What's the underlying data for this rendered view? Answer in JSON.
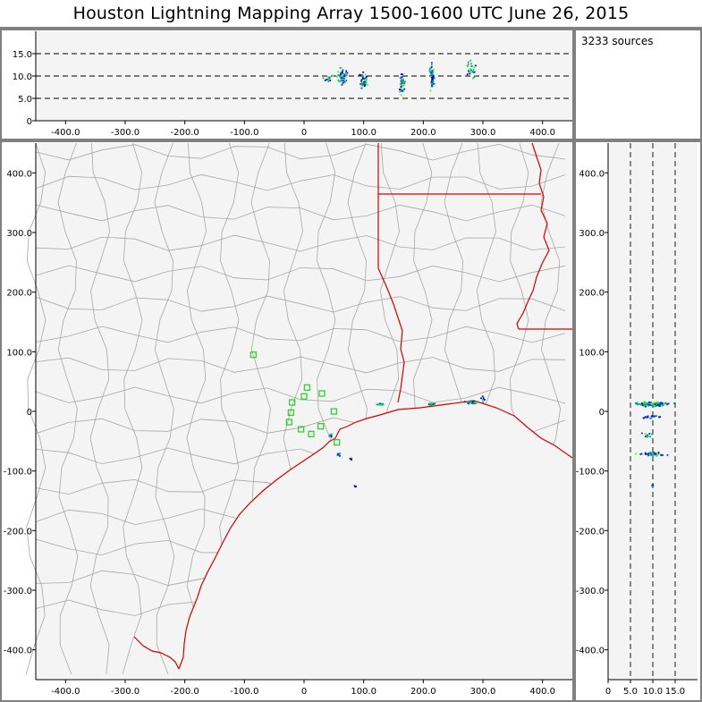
{
  "title": "Houston Lightning Mapping Array   1500-1600 UTC  June 26, 2015",
  "source_count": "3233 sources",
  "colors": {
    "panel_bg": "#f4f4f4",
    "frame": "#808080",
    "county_line": "#a6a6a6",
    "state_line": "#d00000",
    "station": "#22cc22",
    "sources": [
      "#1a00b8",
      "#0040ff",
      "#00a0a0",
      "#00c060",
      "#40ff20"
    ]
  },
  "chart_data": [
    {
      "type": "scatter",
      "name": "altitude-vs-east-west",
      "xlim": [
        -450,
        450
      ],
      "ylim": [
        0,
        20
      ],
      "xticks": [
        -400,
        -300,
        -200,
        -100,
        0,
        100,
        200,
        300,
        400
      ],
      "xtick_labels": [
        "-400.0",
        "-300.0",
        "-200.0",
        "-100.0",
        "0",
        "100.0",
        "200.0",
        "300.0",
        "400.0"
      ],
      "yticks": [
        0,
        5,
        10,
        15
      ],
      "ytick_labels": [
        "0",
        "5.0",
        "10.0",
        "15.0"
      ],
      "dashed_lines": [
        5,
        10,
        15
      ],
      "clusters": [
        {
          "x": 65,
          "y": 10,
          "dx": 12,
          "dy": 2.5,
          "n": 60
        },
        {
          "x": 100,
          "y": 9,
          "dx": 8,
          "dy": 2.5,
          "n": 45
        },
        {
          "x": 165,
          "y": 8,
          "dx": 6,
          "dy": 3.5,
          "n": 40
        },
        {
          "x": 215,
          "y": 10,
          "dx": 6,
          "dy": 4,
          "n": 55
        },
        {
          "x": 280,
          "y": 11.5,
          "dx": 12,
          "dy": 2.5,
          "n": 25
        },
        {
          "x": 40,
          "y": 9.5,
          "dx": 20,
          "dy": 1,
          "n": 12
        }
      ]
    },
    {
      "type": "scatter",
      "name": "plan-view-map",
      "xlim": [
        -450,
        450
      ],
      "ylim": [
        -450,
        450
      ],
      "xticks": [
        -400,
        -300,
        -200,
        -100,
        0,
        100,
        200,
        300,
        400
      ],
      "xtick_labels": [
        "-400.0",
        "-300.0",
        "-200.0",
        "-100.0",
        "0",
        "100.0",
        "200.0",
        "300.0",
        "400.0"
      ],
      "yticks": [
        400,
        300,
        200,
        100,
        0,
        -100,
        -200,
        -300,
        -400
      ],
      "ytick_labels": [
        "400.0",
        "300.0",
        "200.0",
        "100.0",
        "0",
        "-100.0",
        "-200.0",
        "-300.0",
        "-400.0"
      ],
      "stations": [
        [
          -85,
          95
        ],
        [
          -20,
          15
        ],
        [
          0,
          25
        ],
        [
          5,
          40
        ],
        [
          30,
          30
        ],
        [
          -22,
          -2
        ],
        [
          -25,
          -18
        ],
        [
          -5,
          -30
        ],
        [
          12,
          -38
        ],
        [
          28,
          -25
        ],
        [
          50,
          0
        ],
        [
          55,
          -52
        ]
      ],
      "clusters": [
        {
          "x": 58,
          "y": -72,
          "dx": 5,
          "dy": 3,
          "n": 15
        },
        {
          "x": 128,
          "y": 12,
          "dx": 8,
          "dy": 3,
          "n": 20
        },
        {
          "x": 215,
          "y": 12,
          "dx": 10,
          "dy": 3,
          "n": 22
        },
        {
          "x": 280,
          "y": 15,
          "dx": 15,
          "dy": 4,
          "n": 25
        },
        {
          "x": 300,
          "y": 20,
          "dx": 5,
          "dy": 8,
          "n": 8
        },
        {
          "x": 78,
          "y": -80,
          "dx": 4,
          "dy": 4,
          "n": 5
        },
        {
          "x": 85,
          "y": -125,
          "dx": 3,
          "dy": 3,
          "n": 4
        },
        {
          "x": 45,
          "y": -40,
          "dx": 5,
          "dy": 5,
          "n": 6
        }
      ]
    },
    {
      "type": "scatter",
      "name": "north-south-vs-altitude",
      "xlim": [
        0,
        20
      ],
      "ylim": [
        -450,
        450
      ],
      "xticks": [
        0,
        5,
        10,
        15
      ],
      "xtick_labels": [
        "0",
        "5.0",
        "10.0",
        "15.0"
      ],
      "yticks": [
        400,
        300,
        200,
        100,
        0,
        -100,
        -200,
        -300,
        -400
      ],
      "ytick_labels": [
        "400.0",
        "300.0",
        "200.0",
        "100.0",
        "0",
        "-100.0",
        "-200.0",
        "-300.0",
        "-400.0"
      ],
      "dashed_lines": [
        5,
        10,
        15
      ],
      "clusters": [
        {
          "x": 10,
          "y": 12,
          "dx": 5,
          "dy": 5,
          "n": 120
        },
        {
          "x": 10,
          "y": -72,
          "dx": 4,
          "dy": 4,
          "n": 50
        },
        {
          "x": 9,
          "y": -40,
          "dx": 2,
          "dy": 5,
          "n": 12
        },
        {
          "x": 10,
          "y": -10,
          "dx": 3,
          "dy": 4,
          "n": 20
        },
        {
          "x": 10,
          "y": -125,
          "dx": 0.6,
          "dy": 3,
          "n": 6
        }
      ]
    }
  ]
}
